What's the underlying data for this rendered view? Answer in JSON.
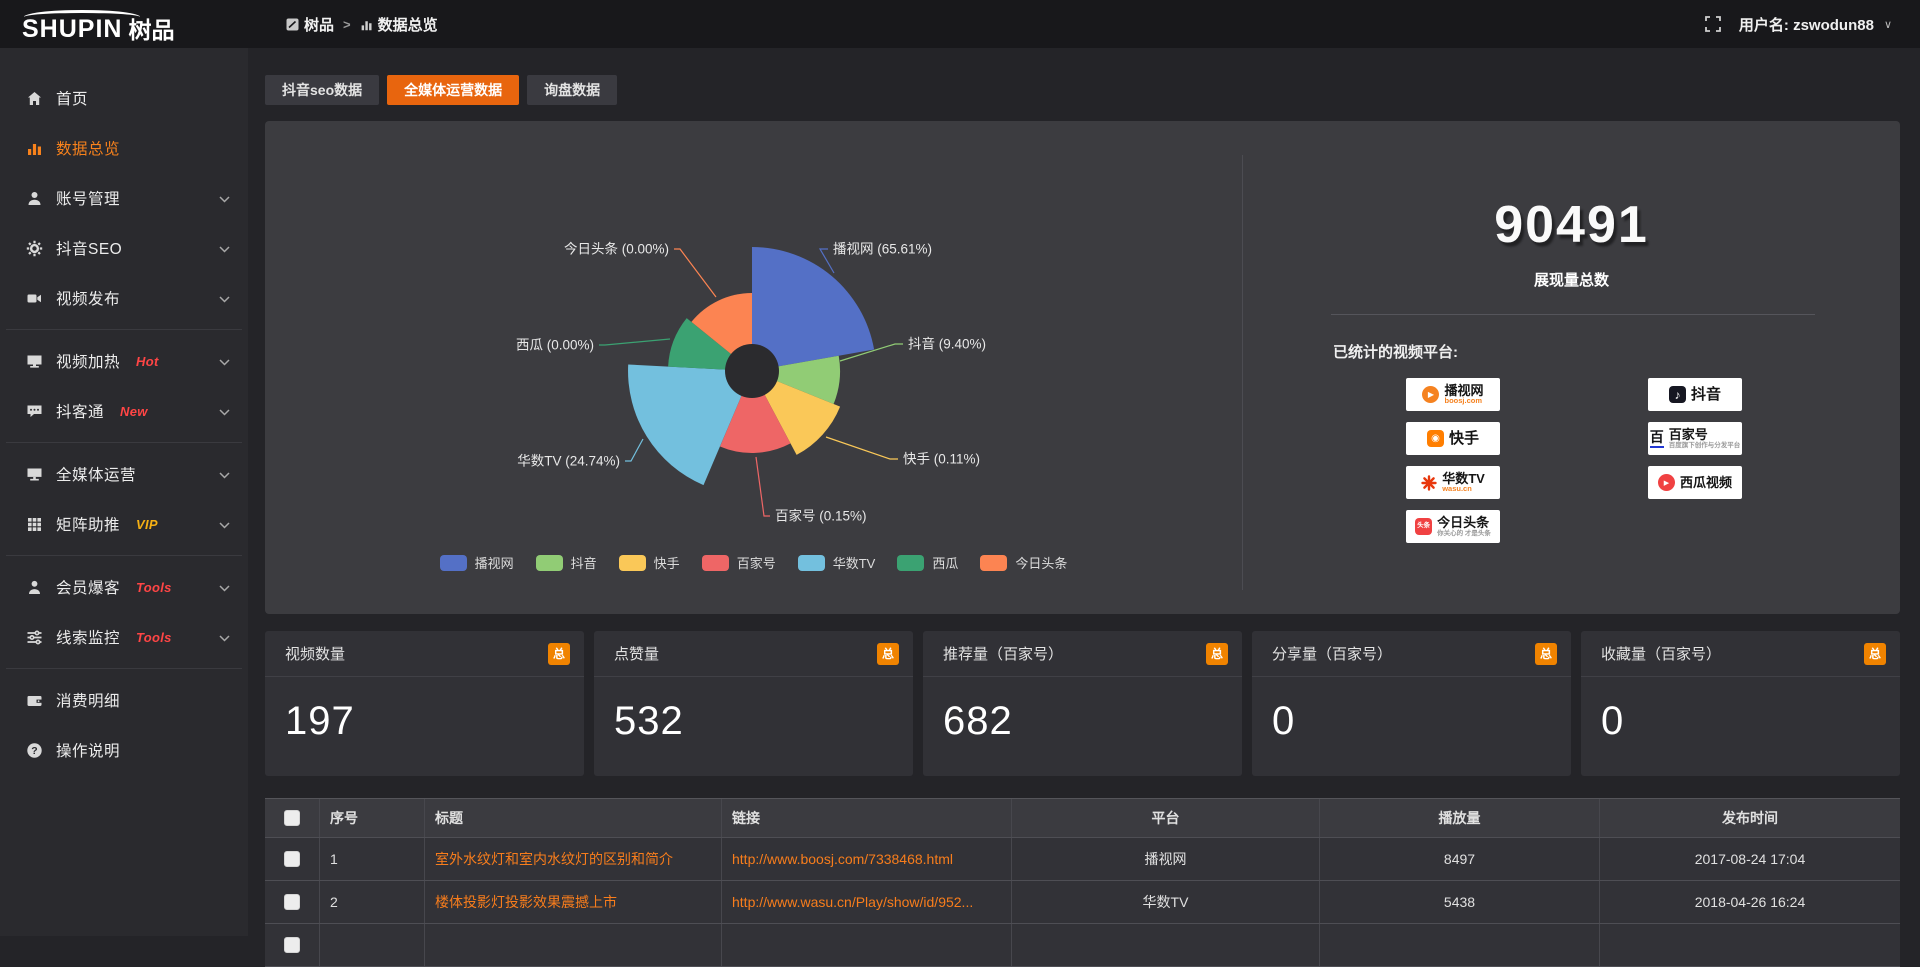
{
  "header": {
    "logo_en": "SHUPIN",
    "logo_cn": "树品",
    "breadcrumb": {
      "item1": "树品",
      "separator": ">",
      "item2": "数据总览"
    },
    "user_label": "用户名:",
    "username": "zswodun88"
  },
  "sidebar": {
    "items": [
      {
        "label": "首页",
        "icon": "home-icon"
      },
      {
        "label": "数据总览",
        "icon": "bar-chart-icon",
        "active": true
      },
      {
        "label": "账号管理",
        "icon": "user-icon",
        "chevron": true
      },
      {
        "label": "抖音SEO",
        "icon": "gear-icon",
        "chevron": true
      },
      {
        "label": "视频发布",
        "icon": "video-icon",
        "chevron": true
      },
      {
        "label": "视频加热",
        "icon": "monitor-icon",
        "badge": "Hot",
        "badge_color": "#ff4545",
        "chevron": true
      },
      {
        "label": "抖客通",
        "icon": "chat-icon",
        "badge": "New",
        "badge_color": "#ff4545",
        "chevron": true
      },
      {
        "label": "全媒体运营",
        "icon": "screen-icon",
        "chevron": true
      },
      {
        "label": "矩阵助推",
        "icon": "grid-icon",
        "badge": "VIP",
        "badge_color": "#f5b014",
        "chevron": true
      },
      {
        "label": "会员爆客",
        "icon": "member-icon",
        "badge": "Tools",
        "badge_color": "#ff4545",
        "chevron": true
      },
      {
        "label": "线索监控",
        "icon": "sliders-icon",
        "badge": "Tools",
        "badge_color": "#ff4545",
        "chevron": true
      },
      {
        "label": "消费明细",
        "icon": "wallet-icon"
      },
      {
        "label": "操作说明",
        "icon": "help-icon"
      }
    ]
  },
  "tabs": [
    {
      "label": "抖音seo数据",
      "active": false
    },
    {
      "label": "全媒体运营数据",
      "active": true
    },
    {
      "label": "询盘数据",
      "active": false
    }
  ],
  "chart_data": {
    "type": "pie",
    "style": "rose",
    "legend_position": "bottom",
    "slices": [
      {
        "name": "播视网",
        "pct": 65.61,
        "label": "播视网 (65.61%)",
        "color": "#5470c6"
      },
      {
        "name": "抖音",
        "pct": 9.4,
        "label": "抖音 (9.40%)",
        "color": "#91cc75"
      },
      {
        "name": "快手",
        "pct": 0.11,
        "label": "快手 (0.11%)",
        "color": "#fac858"
      },
      {
        "name": "百家号",
        "pct": 0.15,
        "label": "百家号 (0.15%)",
        "color": "#ee6666"
      },
      {
        "name": "华数TV",
        "pct": 24.74,
        "label": "华数TV (24.74%)",
        "color": "#73c0de"
      },
      {
        "name": "西瓜",
        "pct": 0.0,
        "label": "西瓜 (0.00%)",
        "color": "#3ba272"
      },
      {
        "name": "今日头条",
        "pct": 0.0,
        "label": "今日头条 (0.00%)",
        "color": "#fc8452"
      }
    ]
  },
  "summary": {
    "value": "90491",
    "caption": "展现量总数",
    "platforms_title": "已统计的视频平台:",
    "platforms_left": [
      {
        "name": "播视网",
        "sub": "boosj.com"
      },
      {
        "name": "快手",
        "sub": ""
      },
      {
        "name": "华数TV",
        "sub": "wasu.cn"
      },
      {
        "name": "今日头条",
        "sub": "你关心的 才是头条"
      }
    ],
    "platforms_right": [
      {
        "name": "抖音",
        "sub": ""
      },
      {
        "name": "百家号",
        "sub": "百度旗下创作与分发平台"
      },
      {
        "name": "西瓜视频",
        "sub": ""
      }
    ]
  },
  "stat_cards": [
    {
      "label": "视频数量",
      "badge": "总",
      "value": "197"
    },
    {
      "label": "点赞量",
      "badge": "总",
      "value": "532"
    },
    {
      "label": "推荐量（百家号）",
      "badge": "总",
      "value": "682"
    },
    {
      "label": "分享量（百家号）",
      "badge": "总",
      "value": "0"
    },
    {
      "label": "收藏量（百家号）",
      "badge": "总",
      "value": "0"
    }
  ],
  "table": {
    "headers": [
      "序号",
      "标题",
      "链接",
      "平台",
      "播放量",
      "发布时间"
    ],
    "rows": [
      {
        "no": "1",
        "title": "室外水纹灯和室内水纹灯的区别和简介",
        "link": "http://www.boosj.com/7338468.html",
        "platform": "播视网",
        "plays": "8497",
        "time": "2017-08-24 17:04"
      },
      {
        "no": "2",
        "title": "楼体投影灯投影效果震撼上市",
        "link": "http://www.wasu.cn/Play/show/id/952...",
        "platform": "华数TV",
        "plays": "5438",
        "time": "2018-04-26 16:24"
      }
    ]
  },
  "colors": {
    "accent_orange": "#e8650e",
    "link_orange": "#f87d1c",
    "badge_orange": "#f08300"
  }
}
